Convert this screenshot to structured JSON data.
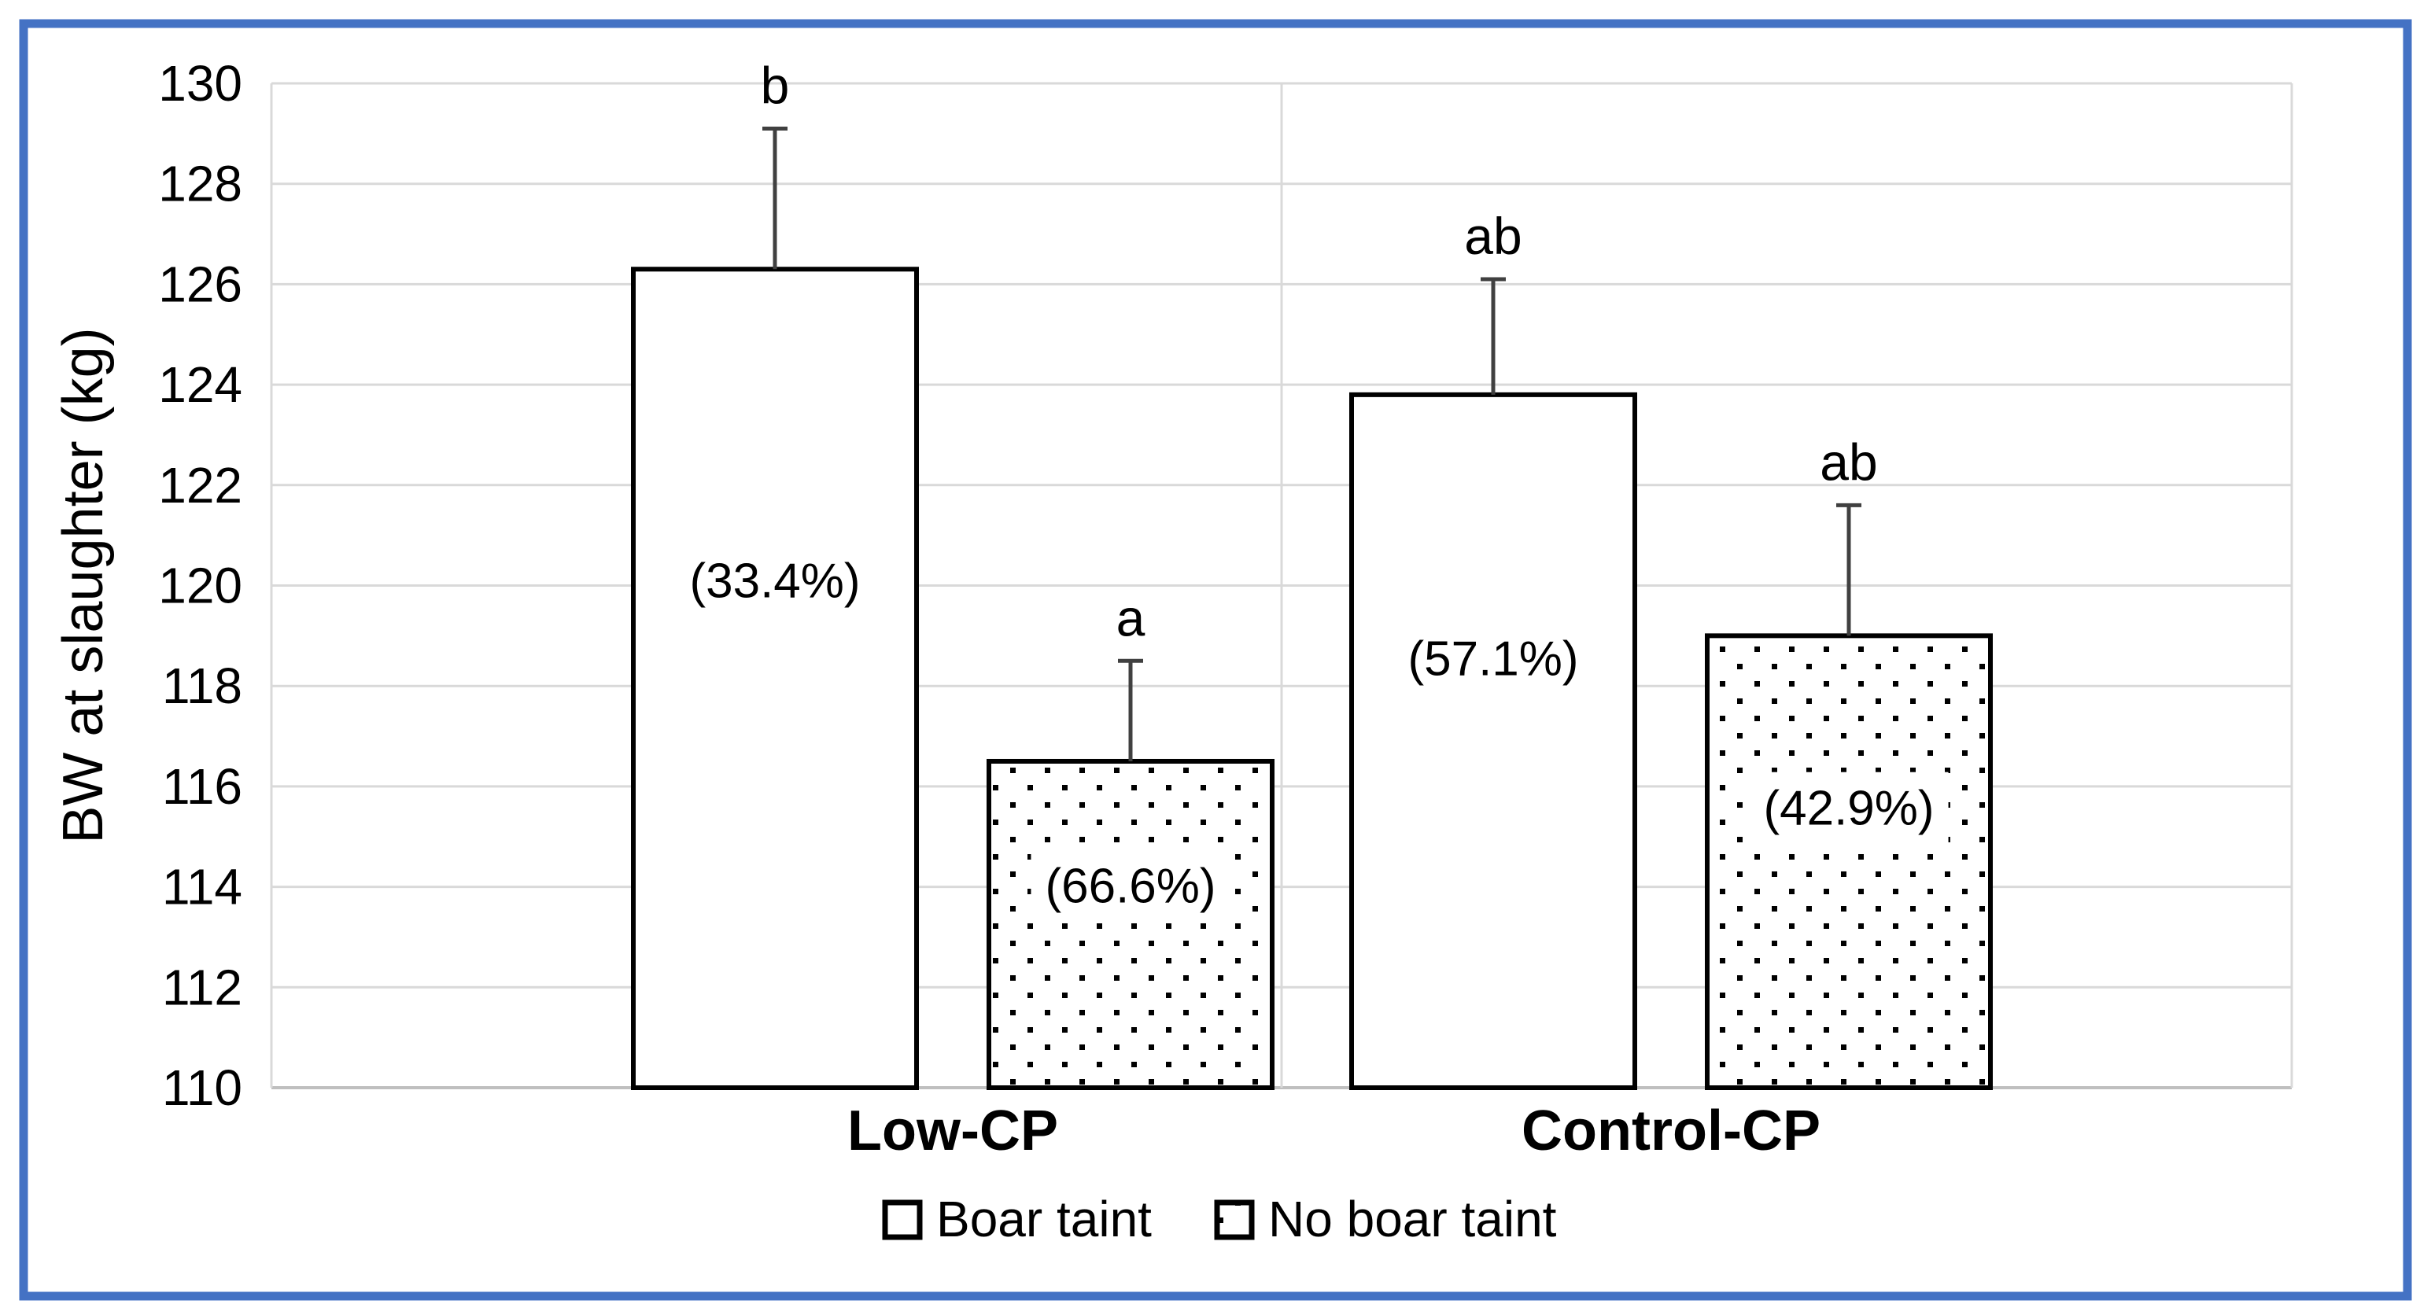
{
  "figure": {
    "border_color": "#4472c4",
    "background": "#ffffff"
  },
  "chart_data": {
    "type": "bar",
    "title": "",
    "xlabel": "",
    "ylabel": "BW at slaughter (kg)",
    "ylim": [
      110,
      130
    ],
    "ytick_step": 2,
    "ytick_labels": [
      "110",
      "112",
      "114",
      "116",
      "118",
      "120",
      "122",
      "124",
      "126",
      "128",
      "130"
    ],
    "grid": true,
    "legend_position": "bottom",
    "categories": [
      "Low-CP",
      "Control-CP"
    ],
    "series": [
      {
        "name": "Boar taint",
        "fill_style": "white",
        "values": [
          126.3,
          123.8
        ],
        "error_up": [
          2.8,
          2.3
        ],
        "error_tops": [
          129.1,
          126.1
        ],
        "sig_letters": [
          "b",
          "ab"
        ],
        "bar_labels": [
          "(33.4%)",
          "(57.1%)"
        ]
      },
      {
        "name": "No boar taint",
        "fill_style": "dotted",
        "values": [
          116.5,
          119.0
        ],
        "error_up": [
          2.0,
          2.6
        ],
        "error_tops": [
          118.5,
          121.6
        ],
        "sig_letters": [
          "a",
          "ab"
        ],
        "bar_labels": [
          "(66.6%)",
          "(42.9%)"
        ]
      }
    ],
    "colors": {
      "gridline": "#d9d9d9",
      "axis_line": "#bfbfbf",
      "bar_border": "#000000",
      "bar_fill": "#ffffff",
      "dot_color": "#000000",
      "error_bar": "#404040",
      "text": "#000000",
      "frame": "#4472c4"
    }
  }
}
